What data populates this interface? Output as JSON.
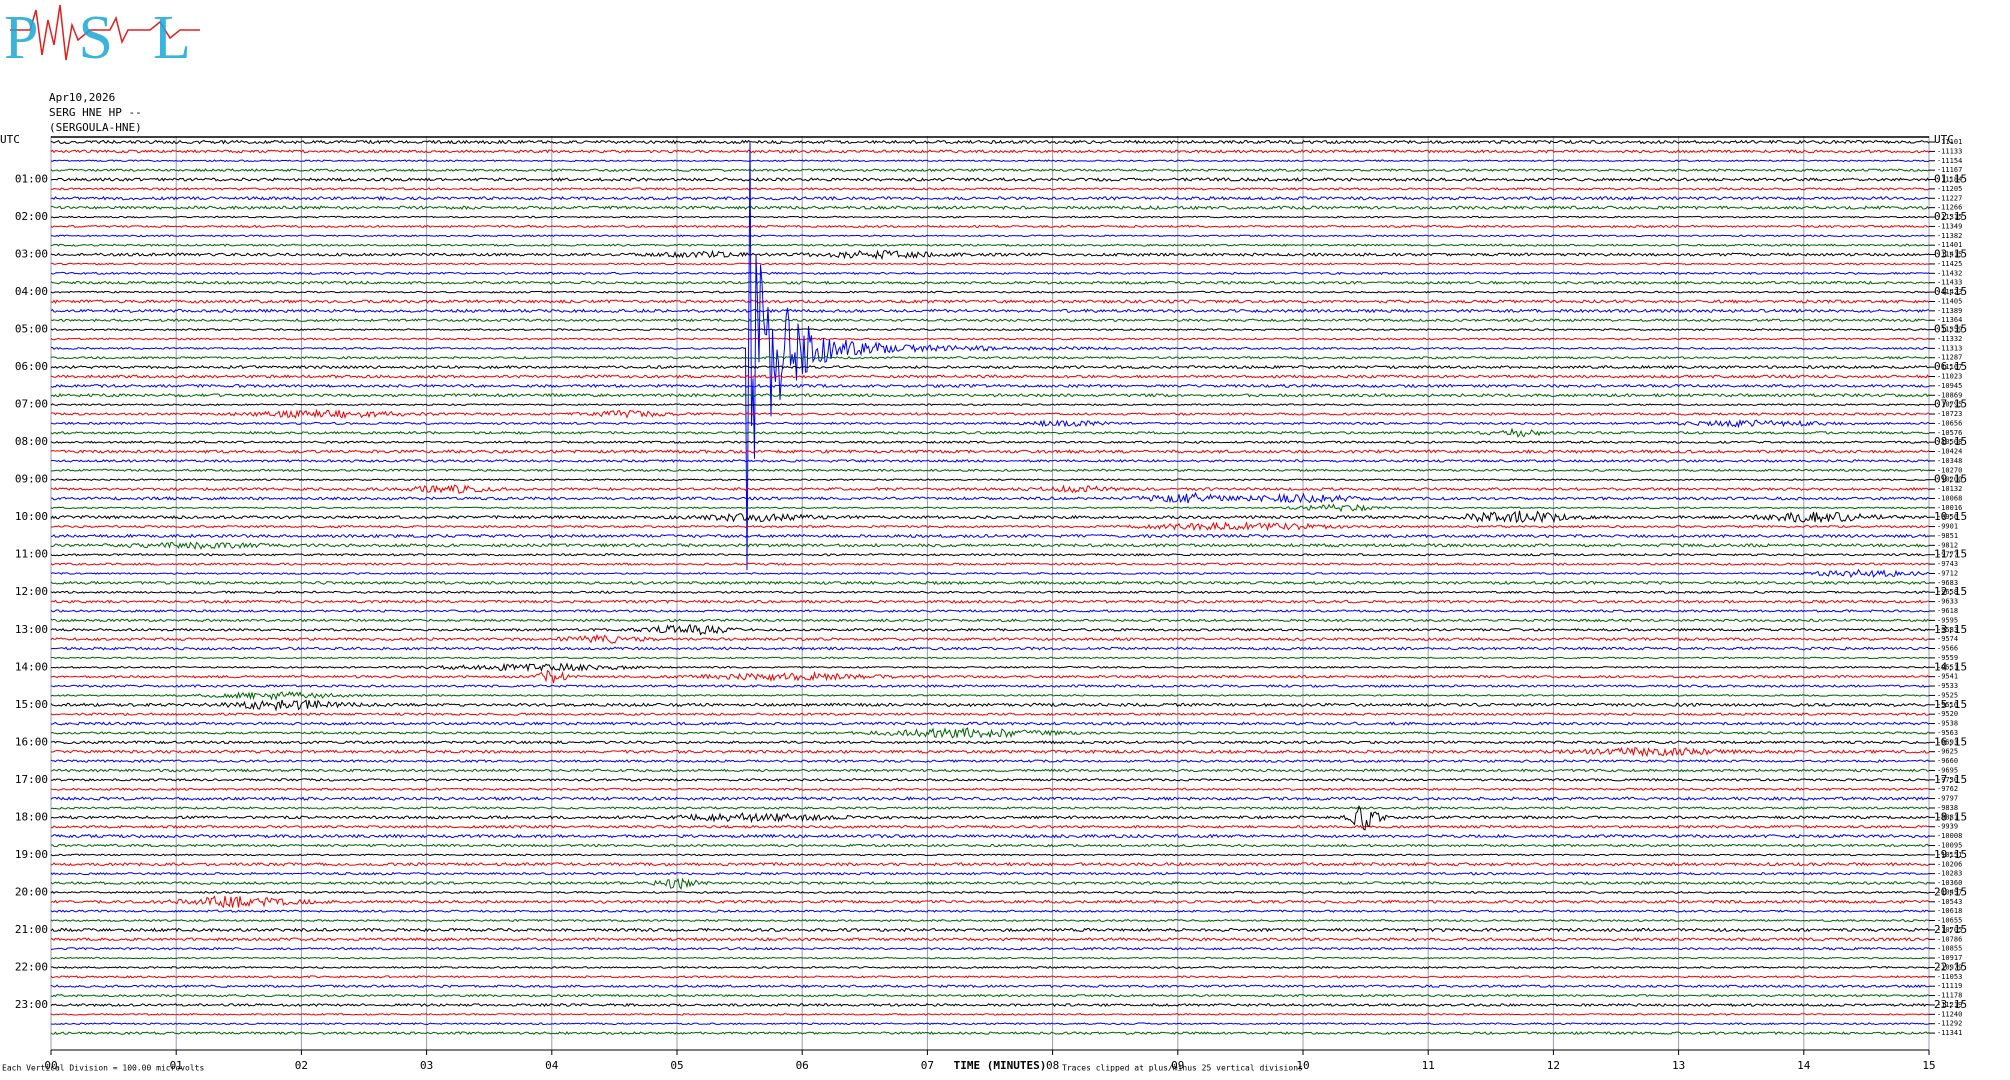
{
  "chart_data": {
    "type": "helicorder",
    "logo": "PSL",
    "date": "Apr10,2026",
    "station": "SERG HNE HP --",
    "station_name": "(SERGOULA-HNE)",
    "left_labels": [
      "UTC",
      "01:00",
      "02:00",
      "03:00",
      "04:00",
      "05:00",
      "06:00",
      "07:00",
      "08:00",
      "09:00",
      "10:00",
      "11:00",
      "12:00",
      "13:00",
      "14:00",
      "15:00",
      "16:00",
      "17:00",
      "18:00",
      "19:00",
      "20:00",
      "21:00",
      "22:00",
      "23:00"
    ],
    "right_labels": [
      "UTC",
      "01:15",
      "02:15",
      "03:15",
      "04:15",
      "05:15",
      "06:15",
      "07:15",
      "08:15",
      "09:15",
      "10:15",
      "11:15",
      "12:15",
      "13:15",
      "14:15",
      "15:15",
      "16:15",
      "17:15",
      "18:15",
      "19:15",
      "20:15",
      "21:15",
      "22:15",
      "23:15"
    ],
    "trace_offsets": [
      -11101,
      -11133,
      -11154,
      -11167,
      -11184,
      -11205,
      -11227,
      -11266,
      -11315,
      -11349,
      -11382,
      -11401,
      -11415,
      -11425,
      -11432,
      -11433,
      -11423,
      -11405,
      -11389,
      -11364,
      -11359,
      -11332,
      -11313,
      -11287,
      -11167,
      -11023,
      -10945,
      -10869,
      -10795,
      -10723,
      -10656,
      -10576,
      -10508,
      -10424,
      -10348,
      -10270,
      -10200,
      -10132,
      -10068,
      -10016,
      -9956,
      -9901,
      -9851,
      -9812,
      -9777,
      -9743,
      -9712,
      -9683,
      -9658,
      -9633,
      -9618,
      -9595,
      -9583,
      -9574,
      -9566,
      -9559,
      -9551,
      -9541,
      -9533,
      -9525,
      -9516,
      -9520,
      -9538,
      -9563,
      -9593,
      -9625,
      -9660,
      -9695,
      -9730,
      -9762,
      -9797,
      -9838,
      -9881,
      -9939,
      -10008,
      -10095,
      -10151,
      -10206,
      -10283,
      -10360,
      -10457,
      -10543,
      -10618,
      -10655,
      -10705,
      -10786,
      -10855,
      -10917,
      -10979,
      -11053,
      -11119,
      -11178,
      -11219,
      -11240,
      -11292,
      -11341
    ],
    "colors": [
      "#000000",
      "#ee0000",
      "#0000ee",
      "#006400"
    ],
    "xlim": [
      0,
      15
    ],
    "xticks": [
      {
        "value": 0,
        "label": "00"
      },
      {
        "value": 1,
        "label": "01"
      },
      {
        "value": 2,
        "label": "02"
      },
      {
        "value": 3,
        "label": "03"
      },
      {
        "value": 4,
        "label": "04"
      },
      {
        "value": 5,
        "label": "05"
      },
      {
        "value": 6,
        "label": "06"
      },
      {
        "value": 7,
        "label": "07"
      },
      {
        "value": 8,
        "label": "08"
      },
      {
        "value": 9,
        "label": "09"
      },
      10,
      11,
      12,
      13,
      14,
      15
    ],
    "grid": true,
    "x_label": "TIME (MINUTES)",
    "scale_note": "Each Vertical Division =  100.00 microvolts",
    "clip_note": "Traces clipped at plus/minus 25 vertical divisions"
  }
}
